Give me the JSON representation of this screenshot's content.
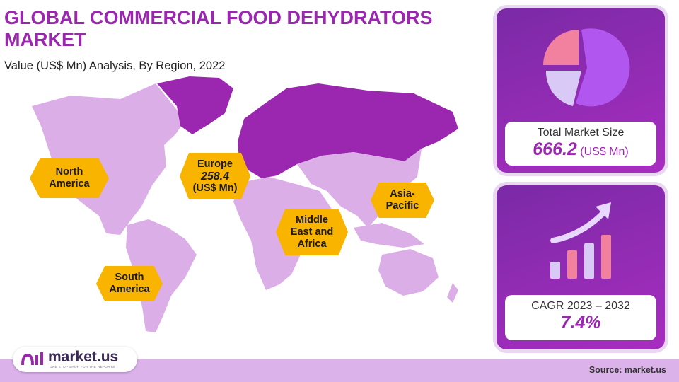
{
  "header": {
    "title": "GLOBAL COMMERCIAL FOOD DEHYDRATORS MARKET",
    "subtitle": "Value (US$ Mn) Analysis, By Region, 2022"
  },
  "regions": {
    "north_america": "North America",
    "europe": "Europe",
    "europe_value": "258.4",
    "europe_unit": "(US$ Mn)",
    "asia_pacific": "Asia-Pacific",
    "mea": "Middle East and Africa",
    "south_america": "South America"
  },
  "total_card": {
    "label": "Total Market Size",
    "value": "666.2",
    "unit": "(US$ Mn)",
    "icon": "pie-chart-icon"
  },
  "cagr_card": {
    "label": "CAGR 2023 – 2032",
    "value": "7.4%",
    "icon": "growth-bar-chart-icon"
  },
  "footer": {
    "source": "Source: market.us",
    "logo_name": "market.us",
    "logo_tagline": "ONE STOP SHOP FOR THE REPORTS"
  },
  "colors": {
    "title": "#9b27b0",
    "land": "#dcaee8",
    "highlight": "#9b27b0",
    "tag": "#f9b400",
    "card": "#8e2bb5"
  }
}
